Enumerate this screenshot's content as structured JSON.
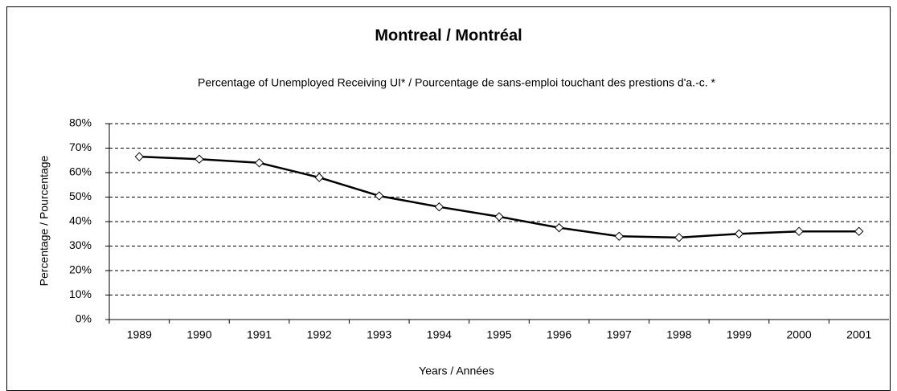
{
  "chart_data": {
    "type": "line",
    "title": "Montreal / Montréal",
    "subtitle": "Percentage of Unemployed Receiving UI* / Pourcentage de sans-emploi touchant des prestions d'a.-c. *",
    "x_label": "Years / Années",
    "y_label": "Percentage / Pourcentage",
    "categories": [
      "1989",
      "1990",
      "1991",
      "1992",
      "1993",
      "1994",
      "1995",
      "1996",
      "1997",
      "1998",
      "1999",
      "2000",
      "2001"
    ],
    "series": [
      {
        "name": "Montreal / Montréal",
        "color": "#000000",
        "values": [
          66.5,
          65.5,
          64,
          58,
          50.5,
          46,
          42,
          37.5,
          34,
          33.5,
          35,
          36,
          36
        ]
      }
    ],
    "ylim": [
      0,
      80
    ],
    "yticks": [
      {
        "value": 0,
        "label": "0%"
      },
      {
        "value": 10,
        "label": "10%"
      },
      {
        "value": 20,
        "label": "20%"
      },
      {
        "value": 30,
        "label": "30%"
      },
      {
        "value": 40,
        "label": "40%"
      },
      {
        "value": 50,
        "label": "50%"
      },
      {
        "value": 60,
        "label": "60%"
      },
      {
        "value": 70,
        "label": "70%"
      },
      {
        "value": 80,
        "label": "80%"
      }
    ],
    "grid": true
  }
}
